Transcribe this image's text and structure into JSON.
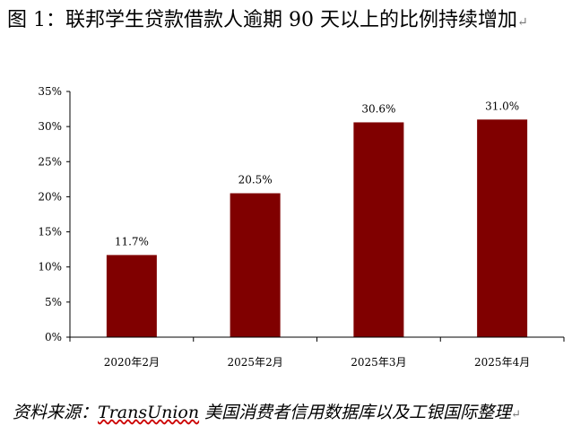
{
  "title": "图 1：联邦学生贷款借款人逾期 90 天以上的比例持续增加",
  "source": {
    "prefix": "资料来源：",
    "org": "TransUnion",
    "suffix": " 美国消费者信用数据库以及工银国际整理"
  },
  "colors": {
    "bar": "#800000",
    "axis": "#000000"
  },
  "chart_data": {
    "type": "bar",
    "categories": [
      "2020年2月",
      "2025年2月",
      "2025年3月",
      "2025年4月"
    ],
    "values": [
      11.7,
      20.5,
      30.6,
      31.0
    ],
    "value_labels": [
      "11.7%",
      "20.5%",
      "30.6%",
      "31.0%"
    ],
    "ylim": [
      0,
      35
    ],
    "yticks": [
      0,
      5,
      10,
      15,
      20,
      25,
      30,
      35
    ],
    "ytick_labels": [
      "0%",
      "5%",
      "10%",
      "15%",
      "20%",
      "25%",
      "30%",
      "35%"
    ],
    "grid": false,
    "legend": "none"
  }
}
